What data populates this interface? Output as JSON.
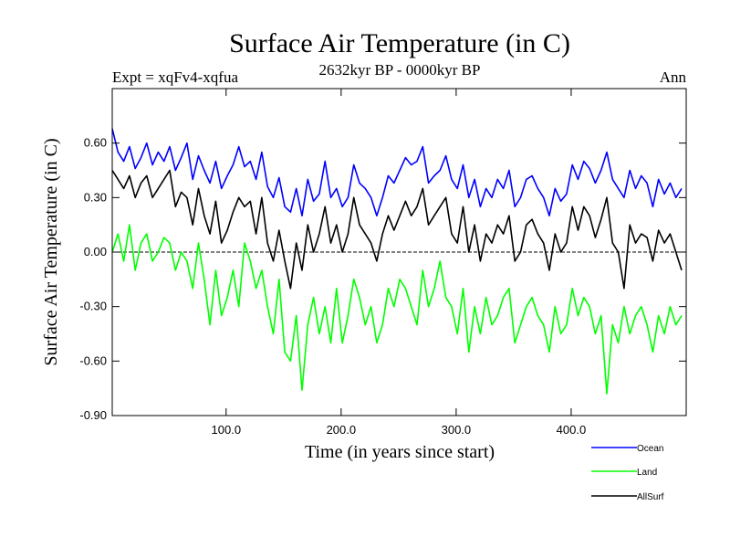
{
  "chart_data": {
    "type": "line",
    "title": "Surface Air Temperature (in C)",
    "subtitle_left": "Expt = xqFv4-xqfua",
    "subtitle_center": "2632kyr BP - 0000kyr BP",
    "subtitle_right": "Ann",
    "xlabel": "Time (in years since start)",
    "ylabel": "Surface Air Temperature (in C)",
    "xlim": [
      1,
      500
    ],
    "ylim": [
      -0.9,
      0.9
    ],
    "xticks": [
      100,
      200,
      300,
      400
    ],
    "xtick_labels": [
      "100.0",
      "200.0",
      "300.0",
      "400.0"
    ],
    "yticks": [
      0.6,
      0.3,
      0.0,
      -0.3,
      -0.6,
      -0.9
    ],
    "ytick_labels": [
      "0.60",
      "0.30",
      "0.00",
      "-0.30",
      "-0.60",
      "-0.90"
    ],
    "zero_line": 0.0,
    "x_step": 5,
    "series": [
      {
        "name": "Ocean",
        "color": "#0000ff",
        "values": [
          0.68,
          0.55,
          0.5,
          0.58,
          0.46,
          0.52,
          0.6,
          0.48,
          0.55,
          0.5,
          0.58,
          0.45,
          0.52,
          0.6,
          0.4,
          0.53,
          0.45,
          0.38,
          0.5,
          0.35,
          0.42,
          0.48,
          0.58,
          0.47,
          0.5,
          0.4,
          0.55,
          0.36,
          0.3,
          0.41,
          0.25,
          0.22,
          0.35,
          0.2,
          0.4,
          0.28,
          0.32,
          0.5,
          0.3,
          0.35,
          0.25,
          0.3,
          0.48,
          0.38,
          0.35,
          0.3,
          0.2,
          0.3,
          0.42,
          0.38,
          0.45,
          0.52,
          0.48,
          0.5,
          0.58,
          0.38,
          0.42,
          0.45,
          0.53,
          0.4,
          0.35,
          0.48,
          0.3,
          0.4,
          0.25,
          0.35,
          0.3,
          0.4,
          0.35,
          0.45,
          0.25,
          0.3,
          0.4,
          0.42,
          0.35,
          0.3,
          0.2,
          0.35,
          0.28,
          0.32,
          0.48,
          0.4,
          0.5,
          0.46,
          0.38,
          0.45,
          0.55,
          0.4,
          0.35,
          0.3,
          0.45,
          0.35,
          0.42,
          0.38,
          0.25,
          0.4,
          0.32,
          0.38,
          0.3,
          0.35
        ]
      },
      {
        "name": "Land",
        "color": "#00ff00",
        "values": [
          0.0,
          0.1,
          -0.05,
          0.15,
          -0.1,
          0.05,
          0.1,
          -0.05,
          0.0,
          0.08,
          0.05,
          -0.1,
          0.0,
          -0.05,
          -0.2,
          0.05,
          -0.15,
          -0.4,
          -0.1,
          -0.35,
          -0.25,
          -0.1,
          -0.3,
          0.05,
          -0.05,
          -0.2,
          -0.1,
          -0.3,
          -0.45,
          -0.15,
          -0.55,
          -0.6,
          -0.35,
          -0.76,
          -0.4,
          -0.25,
          -0.45,
          -0.3,
          -0.5,
          -0.2,
          -0.5,
          -0.35,
          -0.15,
          -0.25,
          -0.4,
          -0.3,
          -0.5,
          -0.4,
          -0.2,
          -0.3,
          -0.15,
          -0.2,
          -0.3,
          -0.4,
          -0.1,
          -0.3,
          -0.2,
          -0.05,
          -0.25,
          -0.3,
          -0.45,
          -0.2,
          -0.55,
          -0.3,
          -0.45,
          -0.25,
          -0.4,
          -0.35,
          -0.25,
          -0.2,
          -0.5,
          -0.4,
          -0.3,
          -0.25,
          -0.35,
          -0.4,
          -0.55,
          -0.3,
          -0.45,
          -0.4,
          -0.2,
          -0.35,
          -0.25,
          -0.3,
          -0.45,
          -0.35,
          -0.78,
          -0.4,
          -0.5,
          -0.3,
          -0.45,
          -0.35,
          -0.3,
          -0.4,
          -0.55,
          -0.35,
          -0.45,
          -0.3,
          -0.4,
          -0.35
        ]
      },
      {
        "name": "AllSurf",
        "color": "#000000",
        "values": [
          0.45,
          0.4,
          0.35,
          0.42,
          0.3,
          0.38,
          0.42,
          0.3,
          0.35,
          0.4,
          0.45,
          0.25,
          0.33,
          0.3,
          0.15,
          0.35,
          0.2,
          0.1,
          0.28,
          0.05,
          0.12,
          0.22,
          0.3,
          0.25,
          0.28,
          0.1,
          0.3,
          0.05,
          -0.05,
          0.12,
          -0.05,
          -0.2,
          0.05,
          -0.1,
          0.15,
          0.0,
          0.1,
          0.25,
          0.05,
          0.15,
          0.0,
          0.1,
          0.3,
          0.15,
          0.1,
          0.05,
          -0.05,
          0.1,
          0.2,
          0.12,
          0.2,
          0.28,
          0.2,
          0.25,
          0.35,
          0.15,
          0.2,
          0.25,
          0.3,
          0.1,
          0.05,
          0.25,
          0.0,
          0.15,
          -0.05,
          0.1,
          0.05,
          0.15,
          0.1,
          0.2,
          -0.05,
          0.0,
          0.15,
          0.18,
          0.1,
          0.05,
          -0.1,
          0.1,
          0.0,
          0.05,
          0.25,
          0.12,
          0.25,
          0.2,
          0.08,
          0.18,
          0.3,
          0.05,
          0.0,
          -0.2,
          0.15,
          0.05,
          0.1,
          0.08,
          -0.05,
          0.12,
          0.05,
          0.1,
          0.0,
          -0.1
        ]
      }
    ]
  }
}
